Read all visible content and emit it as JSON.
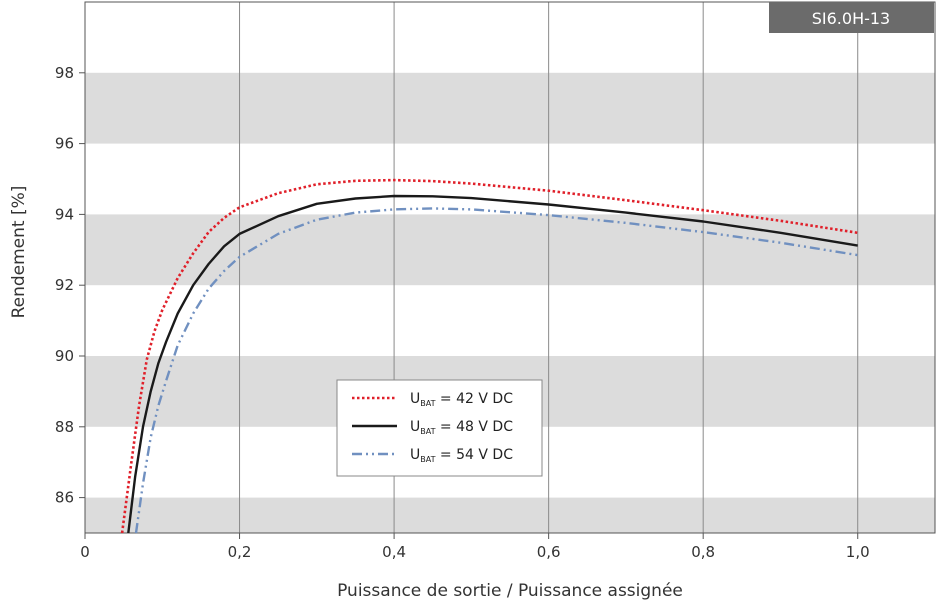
{
  "chart_data": {
    "type": "line",
    "badge": "SI6.0H-13",
    "xlabel": "Puissance de sortie / Puissance assignée",
    "ylabel": "Rendement [%]",
    "xlim": [
      0,
      1.1
    ],
    "ylim": [
      85,
      100
    ],
    "x_ticks": [
      0,
      0.2,
      0.4,
      0.6,
      0.8,
      1.0
    ],
    "x_tick_labels": [
      "0",
      "0,2",
      "0,4",
      "0,6",
      "0,8",
      "1,0"
    ],
    "y_ticks": [
      86,
      88,
      90,
      92,
      94,
      96,
      98
    ],
    "y_tick_labels": [
      "86",
      "88",
      "90",
      "92",
      "94",
      "96",
      "98"
    ],
    "bands": [
      [
        85,
        86
      ],
      [
        88,
        90
      ],
      [
        92,
        94
      ],
      [
        96,
        98
      ]
    ],
    "legend_position": "bottom-center",
    "series": [
      {
        "name_main": "U",
        "name_sub": "BAT",
        "name_rest": " = 42 V DC",
        "style": "dotted",
        "color": "#e0202a",
        "x": [
          0.048,
          0.06,
          0.07,
          0.08,
          0.09,
          0.1,
          0.12,
          0.14,
          0.16,
          0.18,
          0.2,
          0.25,
          0.3,
          0.35,
          0.4,
          0.45,
          0.5,
          0.6,
          0.7,
          0.8,
          0.9,
          1.0
        ],
        "y": [
          85.0,
          87.0,
          88.6,
          89.9,
          90.7,
          91.3,
          92.2,
          92.9,
          93.5,
          93.9,
          94.2,
          94.6,
          94.85,
          94.95,
          94.97,
          94.94,
          94.87,
          94.67,
          94.4,
          94.12,
          93.82,
          93.48
        ]
      },
      {
        "name_main": "U",
        "name_sub": "BAT",
        "name_rest": " = 48 V DC",
        "style": "solid",
        "color": "#1a1a1a",
        "x": [
          0.056,
          0.065,
          0.075,
          0.085,
          0.095,
          0.105,
          0.12,
          0.14,
          0.16,
          0.18,
          0.2,
          0.25,
          0.3,
          0.35,
          0.4,
          0.45,
          0.5,
          0.6,
          0.7,
          0.8,
          0.9,
          1.0
        ],
        "y": [
          85.0,
          86.6,
          88.0,
          89.0,
          89.8,
          90.4,
          91.2,
          92.0,
          92.6,
          93.1,
          93.45,
          93.95,
          94.3,
          94.45,
          94.52,
          94.51,
          94.46,
          94.28,
          94.05,
          93.8,
          93.48,
          93.12
        ]
      },
      {
        "name_main": "U",
        "name_sub": "BAT",
        "name_rest": " = 54 V DC",
        "style": "dashdot",
        "color": "#7090c0",
        "x": [
          0.066,
          0.075,
          0.085,
          0.095,
          0.105,
          0.12,
          0.14,
          0.16,
          0.18,
          0.2,
          0.25,
          0.3,
          0.35,
          0.4,
          0.45,
          0.5,
          0.6,
          0.7,
          0.8,
          0.9,
          1.0
        ],
        "y": [
          85.0,
          86.4,
          87.7,
          88.6,
          89.3,
          90.3,
          91.2,
          91.9,
          92.4,
          92.8,
          93.45,
          93.85,
          94.05,
          94.14,
          94.17,
          94.14,
          93.98,
          93.76,
          93.5,
          93.2,
          92.85
        ]
      }
    ]
  }
}
